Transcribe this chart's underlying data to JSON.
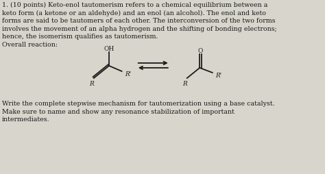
{
  "background_color": "#d8d5cc",
  "text_color": "#1a1a1a",
  "line1": "1. (10 points) Keto-enol tautomerism refers to a chemical equilibrium between a",
  "line2": "keto form (a ketone or an aldehyde) and an enol (an alcohol). The enol and keto",
  "line3": "forms are said to be tautomers of each other. The interconversion of the two forms",
  "line4": "involves the movement of an alpha hydrogen and the shifting of bonding electrons;",
  "line5": "hence, the isomerism qualifies as tautomerism.",
  "overall_label": "Overall reaction:",
  "footer1": "Write the complete stepwise mechanism for tautomerization using a base catalyst.",
  "footer2": "Make sure to name and show any resonance stabilization of important",
  "footer3": "intermediates.",
  "font_size": 6.8,
  "font_size_chem": 6.5
}
